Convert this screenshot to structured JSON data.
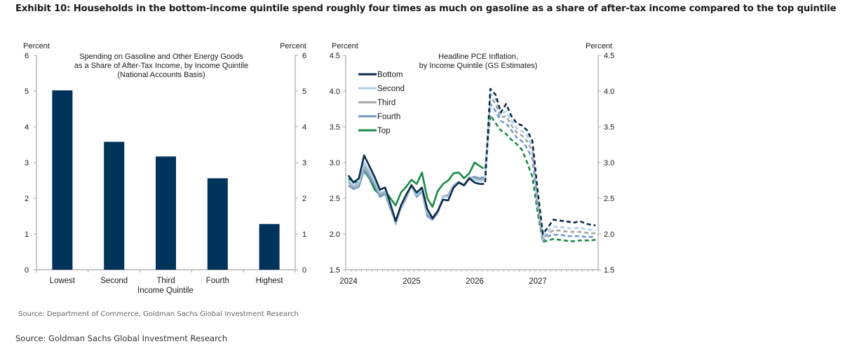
{
  "exhibit": {
    "title": "Exhibit 10: Households in the bottom-income quintile spend roughly four times as much on gasoline as a share of after-tax income compared to the top quintile",
    "source_inner": "Source: Department of Commerce, Goldman Sachs Global Investment Research",
    "source_outer": "Source: Goldman Sachs Global Investment Research"
  },
  "chart_data": [
    {
      "type": "bar",
      "title": "Spending on Gasoline and Other Energy Goods\nas a Share of After-Tax Income, by Income Quintile\n(National Accounts Basis)",
      "title_lines": [
        "Spending on Gasoline and Other Energy Goods",
        "as a Share of After-Tax Income, by Income Quintile",
        "(National Accounts Basis)"
      ],
      "xlabel": "Income Quintile",
      "ylabel_left": "Percent",
      "ylabel_right": "Percent",
      "ylim": [
        0,
        6
      ],
      "yticks": [
        "0",
        "1",
        "2",
        "3",
        "4",
        "5",
        "6"
      ],
      "categories": [
        "Lowest",
        "Second",
        "Third",
        "Fourth",
        "Highest"
      ],
      "values": [
        5.02,
        3.58,
        3.17,
        2.56,
        1.28
      ],
      "color": "#003359",
      "grid": false
    },
    {
      "type": "line",
      "title": "Headline PCE Inflation,\nby Income Quintile (GS Estimates)",
      "title_lines": [
        "Headline PCE Inflation,",
        "by Income Quintile (GS Estimates)"
      ],
      "ylabel_left": "Percent",
      "ylabel_right": "Percent",
      "ylim": [
        1.5,
        4.5
      ],
      "yticks": [
        "1.5",
        "2.0",
        "2.5",
        "3.0",
        "3.5",
        "4.0",
        "4.5"
      ],
      "xticks": [
        "2024",
        "2025",
        "2026",
        "2027"
      ],
      "x_start": "2024-01",
      "x_end": "2027-12",
      "x_frequency": "monthly",
      "forecast_start_index": 25,
      "legend_position": "top-left",
      "grid": false,
      "series": [
        {
          "name": "Bottom",
          "color": "#0b2a4a",
          "values": [
            2.82,
            2.72,
            2.78,
            3.1,
            2.95,
            2.8,
            2.62,
            2.65,
            2.42,
            2.18,
            2.4,
            2.55,
            2.68,
            2.58,
            2.65,
            2.35,
            2.22,
            2.32,
            2.48,
            2.47,
            2.65,
            2.72,
            2.68,
            2.78,
            2.72,
            2.7,
            2.7,
            4.03,
            3.95,
            3.7,
            3.82,
            3.65,
            3.55,
            3.52,
            3.45,
            3.3,
            2.6,
            2.0,
            2.1,
            2.2,
            2.19,
            2.18,
            2.17,
            2.16,
            2.18,
            2.15,
            2.13,
            2.12
          ]
        },
        {
          "name": "Second",
          "color": "#a9cfee",
          "values": [
            2.75,
            2.68,
            2.72,
            3.0,
            2.88,
            2.74,
            2.58,
            2.6,
            2.4,
            2.16,
            2.38,
            2.52,
            2.68,
            2.55,
            2.62,
            2.3,
            2.23,
            2.32,
            2.52,
            2.52,
            2.67,
            2.72,
            2.68,
            2.78,
            2.76,
            2.74,
            2.76,
            3.97,
            3.88,
            3.67,
            3.72,
            3.58,
            3.48,
            3.44,
            3.38,
            3.22,
            2.52,
            1.96,
            2.05,
            2.1,
            2.1,
            2.09,
            2.08,
            2.08,
            2.09,
            2.07,
            2.06,
            2.05
          ]
        },
        {
          "name": "Third",
          "color": "#a5a5a5",
          "values": [
            2.72,
            2.66,
            2.7,
            2.95,
            2.84,
            2.71,
            2.56,
            2.58,
            2.38,
            2.14,
            2.37,
            2.51,
            2.69,
            2.55,
            2.62,
            2.28,
            2.22,
            2.31,
            2.53,
            2.54,
            2.68,
            2.72,
            2.69,
            2.79,
            2.78,
            2.76,
            2.77,
            3.92,
            3.82,
            3.63,
            3.65,
            3.52,
            3.42,
            3.38,
            3.3,
            3.15,
            2.46,
            1.93,
            2.01,
            2.05,
            2.05,
            2.04,
            2.03,
            2.03,
            2.03,
            2.02,
            2.01,
            2.01
          ]
        },
        {
          "name": "Fourth",
          "color": "#6f99c8",
          "values": [
            2.68,
            2.63,
            2.66,
            2.9,
            2.8,
            2.68,
            2.52,
            2.56,
            2.35,
            2.18,
            2.36,
            2.5,
            2.68,
            2.52,
            2.6,
            2.25,
            2.2,
            2.3,
            2.52,
            2.55,
            2.68,
            2.73,
            2.68,
            2.78,
            2.8,
            2.78,
            2.8,
            3.82,
            3.72,
            3.58,
            3.55,
            3.45,
            3.35,
            3.3,
            3.2,
            3.05,
            2.4,
            1.9,
            1.97,
            1.99,
            1.99,
            1.98,
            1.97,
            1.97,
            1.97,
            1.96,
            1.96,
            1.96
          ]
        },
        {
          "name": "Top",
          "color": "#1a8a46",
          "values": [
            2.78,
            2.73,
            2.72,
            2.88,
            2.78,
            2.62,
            2.55,
            2.6,
            2.5,
            2.4,
            2.58,
            2.66,
            2.76,
            2.7,
            2.86,
            2.5,
            2.38,
            2.6,
            2.7,
            2.75,
            2.85,
            2.86,
            2.78,
            2.85,
            3.0,
            2.95,
            2.9,
            3.66,
            3.55,
            3.45,
            3.4,
            3.32,
            3.26,
            3.18,
            3.0,
            2.8,
            2.3,
            1.89,
            1.91,
            1.93,
            1.92,
            1.91,
            1.9,
            1.9,
            1.91,
            1.91,
            1.91,
            1.92
          ]
        }
      ]
    }
  ]
}
